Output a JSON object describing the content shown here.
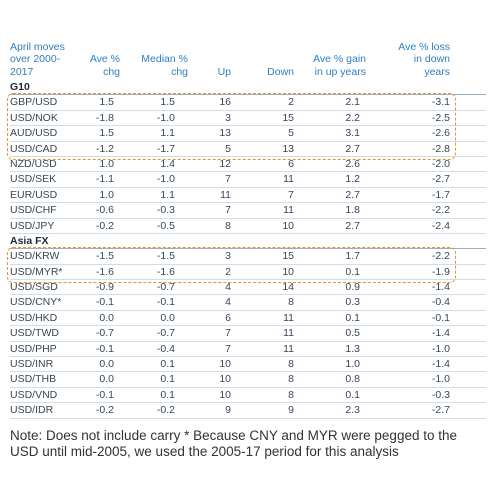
{
  "headers": {
    "pair": "April moves over 2000-2017",
    "avg": "Ave % chg",
    "median": "Median % chg",
    "up": "Up",
    "down": "Down",
    "gain": "Ave % gain in up years",
    "loss": "Ave % loss in down years"
  },
  "sections": [
    {
      "name": "G10",
      "rows": [
        {
          "pair": "GBP/USD",
          "avg": "1.5",
          "median": "1.5",
          "up": "16",
          "down": "2",
          "gain": "2.1",
          "loss": "-3.1"
        },
        {
          "pair": "USD/NOK",
          "avg": "-1.8",
          "median": "-1.0",
          "up": "3",
          "down": "15",
          "gain": "2.2",
          "loss": "-2.5"
        },
        {
          "pair": "AUD/USD",
          "avg": "1.5",
          "median": "1.1",
          "up": "13",
          "down": "5",
          "gain": "3.1",
          "loss": "-2.6"
        },
        {
          "pair": "USD/CAD",
          "avg": "-1.2",
          "median": "-1.7",
          "up": "5",
          "down": "13",
          "gain": "2.7",
          "loss": "-2.8"
        },
        {
          "pair": "NZD/USD",
          "avg": "1.0",
          "median": "1.4",
          "up": "12",
          "down": "6",
          "gain": "2.6",
          "loss": "-2.0"
        },
        {
          "pair": "USD/SEK",
          "avg": "-1.1",
          "median": "-1.0",
          "up": "7",
          "down": "11",
          "gain": "1.2",
          "loss": "-2.7"
        },
        {
          "pair": "EUR/USD",
          "avg": "1.0",
          "median": "1.1",
          "up": "11",
          "down": "7",
          "gain": "2.7",
          "loss": "-1.7"
        },
        {
          "pair": "USD/CHF",
          "avg": "-0.6",
          "median": "-0.3",
          "up": "7",
          "down": "11",
          "gain": "1.8",
          "loss": "-2.2"
        },
        {
          "pair": "USD/JPY",
          "avg": "-0.2",
          "median": "-0.5",
          "up": "8",
          "down": "10",
          "gain": "2.7",
          "loss": "-2.4"
        }
      ]
    },
    {
      "name": "Asia FX",
      "rows": [
        {
          "pair": "USD/KRW",
          "avg": "-1.5",
          "median": "-1.5",
          "up": "3",
          "down": "15",
          "gain": "1.7",
          "loss": "-2.2"
        },
        {
          "pair": "USD/MYR*",
          "avg": "-1.6",
          "median": "-1.6",
          "up": "2",
          "down": "10",
          "gain": "0.1",
          "loss": "-1.9"
        },
        {
          "pair": "USD/SGD",
          "avg": "-0.9",
          "median": "-0.7",
          "up": "4",
          "down": "14",
          "gain": "0.9",
          "loss": "-1.4"
        },
        {
          "pair": "USD/CNY*",
          "avg": "-0.1",
          "median": "-0.1",
          "up": "4",
          "down": "8",
          "gain": "0.3",
          "loss": "-0.4"
        },
        {
          "pair": "USD/HKD",
          "avg": "0.0",
          "median": "0.0",
          "up": "6",
          "down": "11",
          "gain": "0.1",
          "loss": "-0.1"
        },
        {
          "pair": "USD/TWD",
          "avg": "-0.7",
          "median": "-0.7",
          "up": "7",
          "down": "11",
          "gain": "0.5",
          "loss": "-1.4"
        },
        {
          "pair": "USD/PHP",
          "avg": "-0.1",
          "median": "-0.4",
          "up": "7",
          "down": "11",
          "gain": "1.3",
          "loss": "-1.0"
        },
        {
          "pair": "USD/INR",
          "avg": "0.0",
          "median": "0.1",
          "up": "10",
          "down": "8",
          "gain": "1.0",
          "loss": "-1.4"
        },
        {
          "pair": "USD/THB",
          "avg": "0.0",
          "median": "0.1",
          "up": "10",
          "down": "8",
          "gain": "0.8",
          "loss": "-1.0"
        },
        {
          "pair": "USD/VND",
          "avg": "-0.1",
          "median": "0.1",
          "up": "10",
          "down": "8",
          "gain": "0.1",
          "loss": "-0.3"
        },
        {
          "pair": "USD/IDR",
          "avg": "-0.2",
          "median": "-0.2",
          "up": "9",
          "down": "9",
          "gain": "2.3",
          "loss": "-2.7"
        }
      ]
    }
  ],
  "note": "Note: Does not include carry * Because CNY and MYR were pegged to the USD until mid-2005, we used the 2005-17 period for this analysis",
  "colors": {
    "header_text": "#2f7fbf",
    "highlight_box": "#e2962a"
  }
}
